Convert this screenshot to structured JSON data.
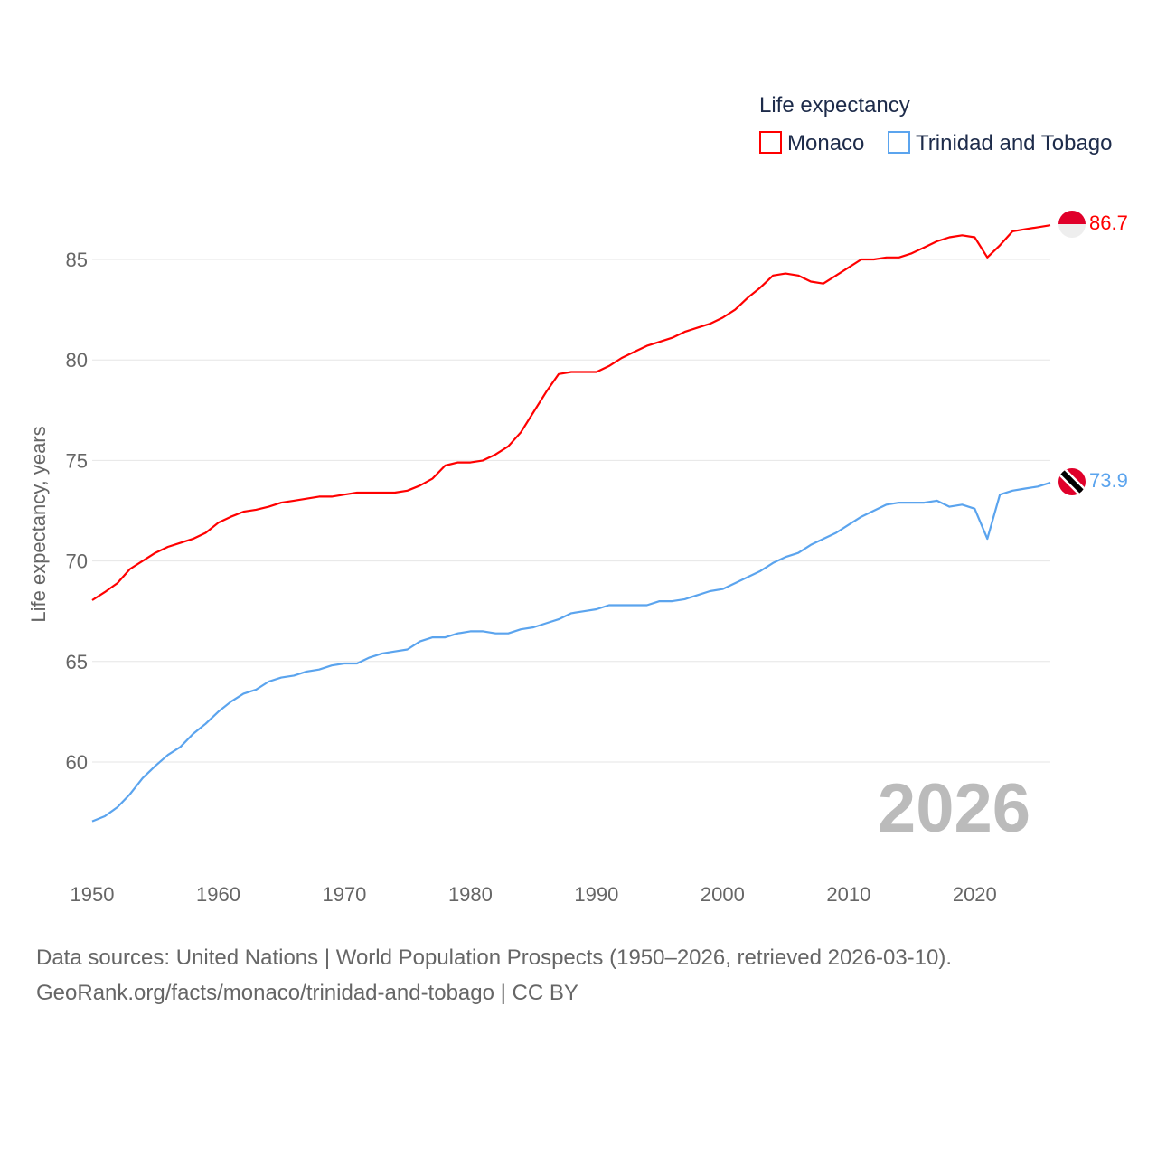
{
  "chart_data": {
    "type": "line",
    "legend_title": "Life expectancy",
    "legend_position": "top-right",
    "ylabel": "Life expectancy, years",
    "xlabel": "",
    "xlim": [
      1950,
      2026
    ],
    "ylim": [
      55.5,
      88
    ],
    "x_ticks": [
      "1950",
      "1960",
      "1970",
      "1980",
      "1990",
      "2000",
      "2010",
      "2020"
    ],
    "y_ticks": [
      "60",
      "65",
      "70",
      "75",
      "80",
      "85"
    ],
    "year_watermark": "2026",
    "start_year": 1950,
    "series": [
      {
        "name": "Monaco",
        "color": "#ff0000",
        "end_label": "86.7",
        "values": [
          68.05,
          68.45,
          68.9,
          69.6,
          70.0,
          70.4,
          70.7,
          70.9,
          71.1,
          71.4,
          71.9,
          72.2,
          72.45,
          72.55,
          72.7,
          72.9,
          73.0,
          73.1,
          73.2,
          73.2,
          73.3,
          73.4,
          73.4,
          73.4,
          73.4,
          73.5,
          73.75,
          74.1,
          74.75,
          74.9,
          74.9,
          75.0,
          75.3,
          75.7,
          76.4,
          77.4,
          78.4,
          79.3,
          79.4,
          79.4,
          79.4,
          79.7,
          80.1,
          80.4,
          80.7,
          80.9,
          81.1,
          81.4,
          81.6,
          81.8,
          82.1,
          82.5,
          83.1,
          83.6,
          84.2,
          84.3,
          84.2,
          83.9,
          83.8,
          84.2,
          84.6,
          85.0,
          85.0,
          85.1,
          85.1,
          85.3,
          85.6,
          85.9,
          86.1,
          86.2,
          86.1,
          85.1,
          85.7,
          86.4,
          86.5,
          86.6,
          86.7
        ]
      },
      {
        "name": "Trinidad and Tobago",
        "color": "#5ba4ee",
        "end_label": "73.9",
        "values": [
          57.05,
          57.3,
          57.75,
          58.4,
          59.2,
          59.8,
          60.35,
          60.75,
          61.4,
          61.9,
          62.5,
          63.0,
          63.4,
          63.6,
          64.0,
          64.2,
          64.3,
          64.5,
          64.6,
          64.8,
          64.9,
          64.9,
          65.2,
          65.4,
          65.5,
          65.6,
          66.0,
          66.2,
          66.2,
          66.4,
          66.5,
          66.5,
          66.4,
          66.4,
          66.6,
          66.7,
          66.9,
          67.1,
          67.4,
          67.5,
          67.6,
          67.8,
          67.8,
          67.8,
          67.8,
          68.0,
          68.0,
          68.1,
          68.3,
          68.5,
          68.6,
          68.9,
          69.2,
          69.5,
          69.9,
          70.2,
          70.4,
          70.8,
          71.1,
          71.4,
          71.8,
          72.2,
          72.5,
          72.8,
          72.9,
          72.9,
          72.9,
          73.0,
          72.7,
          72.8,
          72.6,
          71.1,
          73.3,
          73.5,
          73.6,
          73.7,
          73.9
        ]
      }
    ]
  },
  "footer": {
    "line1": "Data sources: United Nations | World Population Prospects (1950–2026, retrieved 2026-03-10).",
    "line2": "GeoRank.org/facts/monaco/trinidad-and-tobago | CC BY"
  }
}
